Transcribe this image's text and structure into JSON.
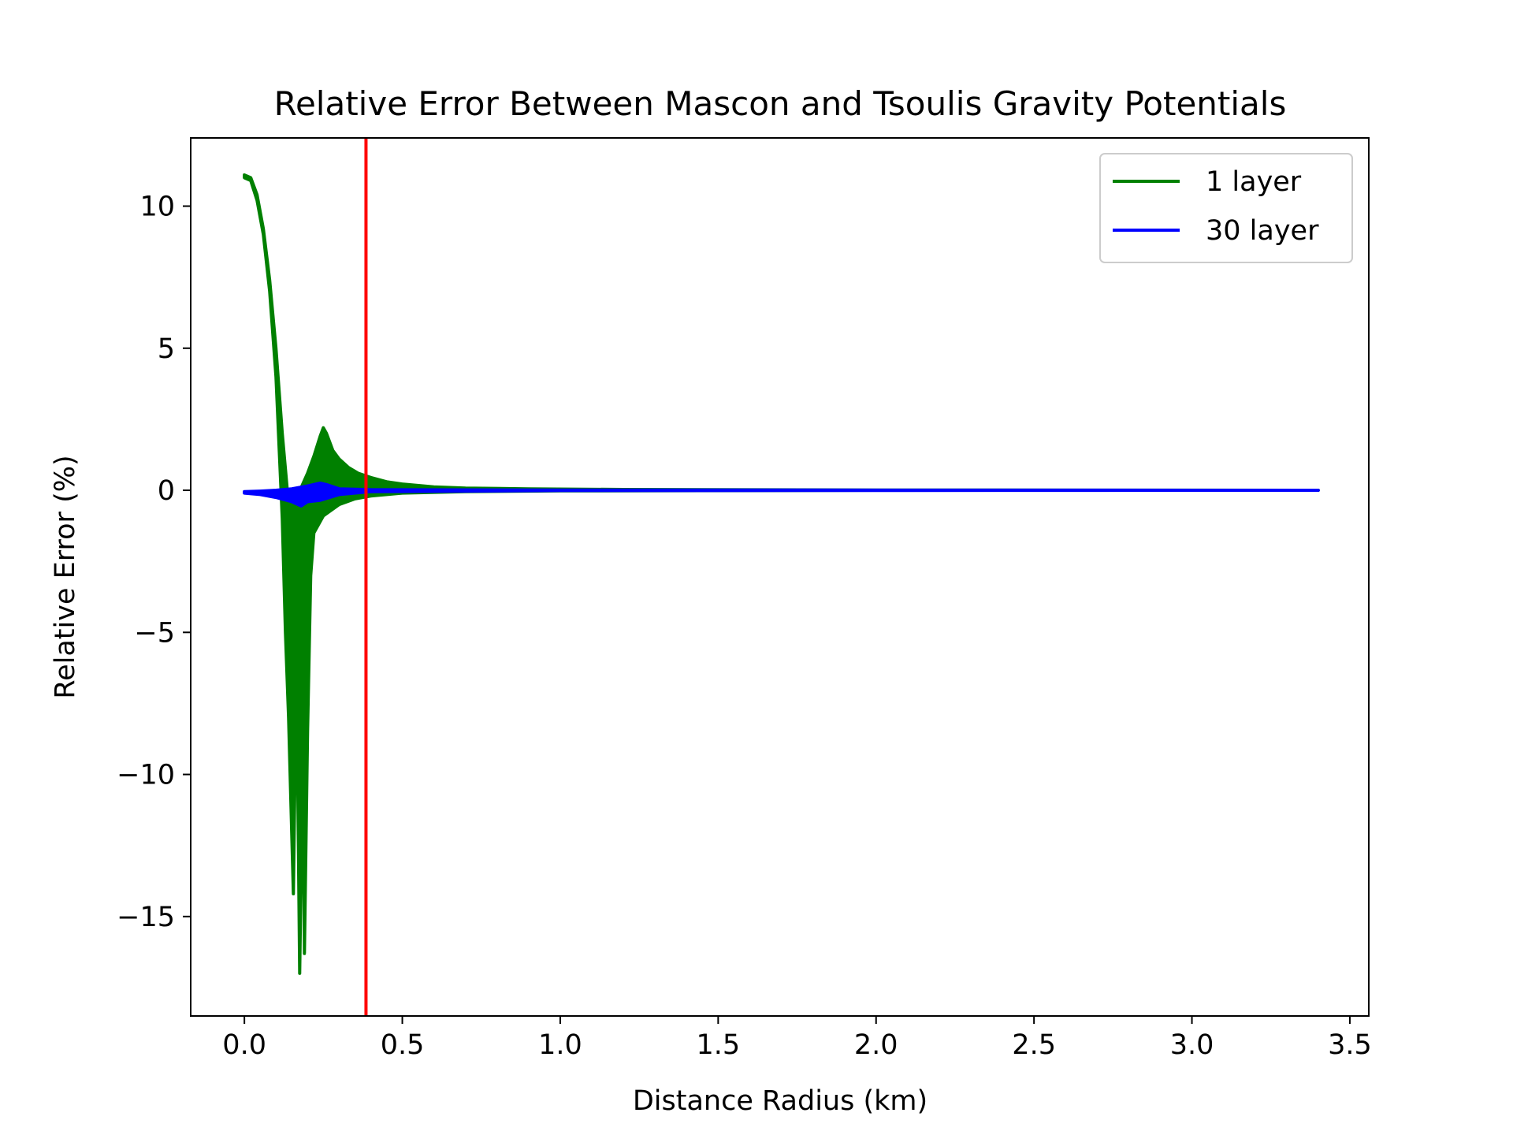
{
  "chart_data": {
    "type": "line",
    "title": "Relative Error Between Mascon and Tsoulis Gravity Potentials",
    "xlabel": "Distance Radius (km)",
    "ylabel": "Relative Error (%)",
    "xlim": [
      -0.17,
      3.56
    ],
    "ylim": [
      -18.5,
      12.4
    ],
    "x_ticks": [
      0.0,
      0.5,
      1.0,
      1.5,
      2.0,
      2.5,
      3.0,
      3.5
    ],
    "x_tick_labels": [
      "0.0",
      "0.5",
      "1.0",
      "1.5",
      "2.0",
      "2.5",
      "3.0",
      "3.5"
    ],
    "y_ticks": [
      10,
      5,
      0,
      -5,
      -10,
      -15
    ],
    "y_tick_labels": [
      "10",
      "5",
      "0",
      "−5",
      "−10",
      "−15"
    ],
    "grid": false,
    "legend": "top-right",
    "series": [
      {
        "name": "1 layer",
        "color": "#008000",
        "envelope_upper": [
          [
            0.0,
            11.1
          ],
          [
            0.02,
            11.0
          ],
          [
            0.04,
            10.4
          ],
          [
            0.06,
            9.2
          ],
          [
            0.08,
            7.4
          ],
          [
            0.1,
            5.0
          ],
          [
            0.12,
            2.0
          ],
          [
            0.14,
            -0.5
          ],
          [
            0.16,
            -0.2
          ],
          [
            0.18,
            0.1
          ],
          [
            0.2,
            0.6
          ],
          [
            0.22,
            1.2
          ],
          [
            0.24,
            1.9
          ],
          [
            0.25,
            2.2
          ],
          [
            0.26,
            2.0
          ],
          [
            0.28,
            1.4
          ],
          [
            0.3,
            1.1
          ],
          [
            0.33,
            0.8
          ],
          [
            0.36,
            0.6
          ],
          [
            0.4,
            0.45
          ],
          [
            0.45,
            0.3
          ],
          [
            0.5,
            0.22
          ],
          [
            0.6,
            0.12
          ],
          [
            0.7,
            0.08
          ],
          [
            0.9,
            0.05
          ],
          [
            1.2,
            0.03
          ],
          [
            2.0,
            0.01
          ],
          [
            3.4,
            0.0
          ]
        ],
        "envelope_lower": [
          [
            0.0,
            11.0
          ],
          [
            0.02,
            10.9
          ],
          [
            0.04,
            10.2
          ],
          [
            0.06,
            9.0
          ],
          [
            0.08,
            7.0
          ],
          [
            0.1,
            4.0
          ],
          [
            0.12,
            -1.0
          ],
          [
            0.13,
            -5.0
          ],
          [
            0.14,
            -8.0
          ],
          [
            0.155,
            -14.2
          ],
          [
            0.165,
            -6.0
          ],
          [
            0.175,
            -17.0
          ],
          [
            0.185,
            -9.0
          ],
          [
            0.19,
            -16.3
          ],
          [
            0.2,
            -8.5
          ],
          [
            0.21,
            -3.0
          ],
          [
            0.22,
            -1.5
          ],
          [
            0.25,
            -0.9
          ],
          [
            0.3,
            -0.5
          ],
          [
            0.35,
            -0.3
          ],
          [
            0.4,
            -0.2
          ],
          [
            0.5,
            -0.1
          ],
          [
            0.7,
            -0.05
          ],
          [
            1.0,
            -0.02
          ],
          [
            2.0,
            0.0
          ],
          [
            3.4,
            0.0
          ]
        ]
      },
      {
        "name": "30 layer",
        "color": "#0000ff",
        "envelope_upper": [
          [
            0.0,
            -0.05
          ],
          [
            0.05,
            -0.03
          ],
          [
            0.1,
            0.0
          ],
          [
            0.15,
            0.05
          ],
          [
            0.2,
            0.15
          ],
          [
            0.24,
            0.25
          ],
          [
            0.26,
            0.2
          ],
          [
            0.3,
            0.05
          ],
          [
            0.4,
            0.02
          ],
          [
            1.0,
            0.01
          ],
          [
            3.4,
            0.0
          ]
        ],
        "envelope_lower": [
          [
            0.0,
            -0.1
          ],
          [
            0.05,
            -0.15
          ],
          [
            0.1,
            -0.25
          ],
          [
            0.15,
            -0.4
          ],
          [
            0.18,
            -0.55
          ],
          [
            0.2,
            -0.4
          ],
          [
            0.24,
            -0.35
          ],
          [
            0.3,
            -0.15
          ],
          [
            0.4,
            -0.05
          ],
          [
            1.0,
            -0.01
          ],
          [
            3.4,
            0.0
          ]
        ]
      }
    ],
    "annotations": [
      {
        "type": "vline",
        "x": 0.385,
        "color": "#ff0000"
      }
    ]
  }
}
